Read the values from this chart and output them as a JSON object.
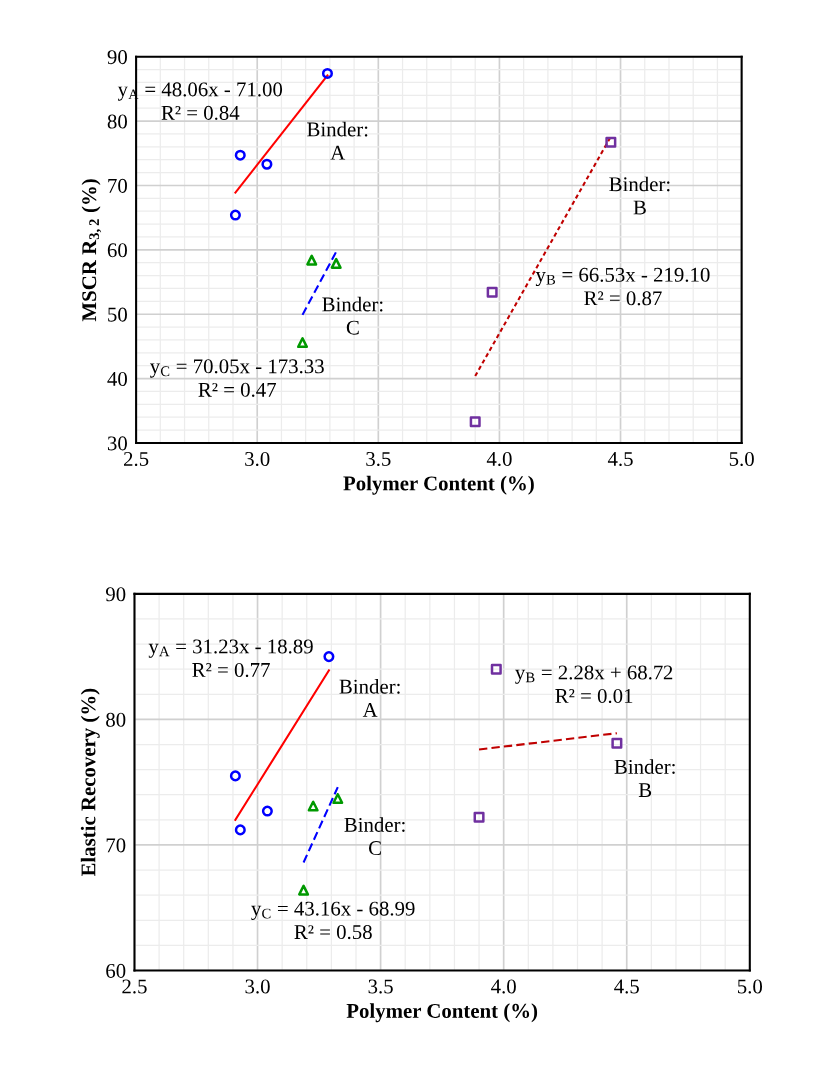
{
  "chart_data": [
    {
      "type": "scatter",
      "xlabel": "Polymer Content (%)",
      "ylabel": "MSCR R$_{3,2}$ (%)",
      "xlim": [
        2.5,
        5.0
      ],
      "xticks": [
        2.5,
        {
          "value": 3,
          "label": "3.0"
        },
        3.5,
        {
          "value": 4,
          "label": "4.0"
        },
        4.5,
        {
          "value": 5,
          "label": "5.0"
        }
      ],
      "ylim": [
        30,
        90
      ],
      "yticks": [
        30,
        40,
        50,
        60,
        70,
        80,
        90
      ],
      "grid": true,
      "series": [
        {
          "marker": "circle",
          "color": "#0000ff",
          "x": [
            2.91,
            2.93,
            3.04,
            3.29
          ],
          "values": [
            65.4,
            74.7,
            73.3,
            87.4
          ]
        },
        {
          "marker": "square",
          "color": "#7030a0",
          "x": [
            3.9,
            3.97,
            4.46
          ],
          "values": [
            33.3,
            53.4,
            76.7
          ]
        },
        {
          "marker": "triangle",
          "color": "#009900",
          "x": [
            3.187,
            3.225,
            3.326
          ],
          "values": [
            45.6,
            58.4,
            57.9
          ]
        },
        {
          "type": "line",
          "line_style": "solid",
          "color": "#ff0000",
          "x": [
            2.91,
            3.29
          ],
          "values": [
            68.9,
            87.1
          ]
        },
        {
          "type": "line",
          "line_style": "dotted",
          "color": "#c00000",
          "x": [
            3.9,
            4.46
          ],
          "values": [
            40.4,
            77.6
          ]
        },
        {
          "type": "line",
          "line_style": "dashed",
          "color": "#0000ff",
          "x": [
            3.187,
            3.326
          ],
          "values": [
            49.9,
            59.7
          ]
        }
      ],
      "annotations": [
        "y$_{A}$ = 48.06x - 71.00\nR² = 0.84",
        "Binder:\nA",
        "Binder:\nB",
        "y$_{B}$ = 66.53x - 219.10\nR² = 0.87",
        "Binder:\nC",
        "y$_{C}$ = 70.05x - 173.33\nR² = 0.47"
      ]
    },
    {
      "type": "scatter",
      "xlabel": "Polymer Content (%)",
      "ylabel": "Elastic Recovery (%)",
      "xlim": [
        2.5,
        5.0
      ],
      "xticks": [
        2.5,
        {
          "value": 3,
          "label": "3.0"
        },
        3.5,
        {
          "value": 4,
          "label": "4.0"
        },
        4.5,
        {
          "value": 5,
          "label": "5.0"
        }
      ],
      "ylim": [
        60,
        90
      ],
      "yticks": [
        60,
        70,
        80,
        90
      ],
      "grid": true,
      "series": [
        {
          "marker": "circle",
          "color": "#0000ff",
          "x": [
            2.91,
            2.93,
            3.04,
            3.29
          ],
          "values": [
            75.5,
            71.2,
            72.7,
            85.0
          ]
        },
        {
          "marker": "square",
          "color": "#7030a0",
          "x": [
            3.9,
            3.97,
            4.46
          ],
          "values": [
            72.2,
            84.0,
            78.1
          ]
        },
        {
          "marker": "triangle",
          "color": "#009900",
          "x": [
            3.187,
            3.226,
            3.326
          ],
          "values": [
            66.4,
            73.1,
            73.7
          ]
        },
        {
          "type": "line",
          "line_style": "solid",
          "color": "#ff0000",
          "x": [
            2.91,
            3.29
          ],
          "values": [
            72.0,
            83.9
          ]
        },
        {
          "type": "line",
          "line_style": "dashed",
          "color": "#c00000",
          "x": [
            3.9,
            4.46
          ],
          "values": [
            77.6,
            78.9
          ]
        },
        {
          "type": "line",
          "line_style": "dashed",
          "color": "#0000ff",
          "x": [
            3.187,
            3.326
          ],
          "values": [
            68.6,
            74.6
          ]
        }
      ],
      "annotations": [
        "y$_{A}$ = 31.23x - 18.89\nR² = 0.77",
        "Binder:\nA",
        "y$_{B}$ = 2.28x + 68.72\nR² = 0.01",
        "Binder:\nB",
        "Binder:\nC",
        "y$_{C}$ = 43.16x - 68.99\nR² = 0.58"
      ]
    }
  ]
}
